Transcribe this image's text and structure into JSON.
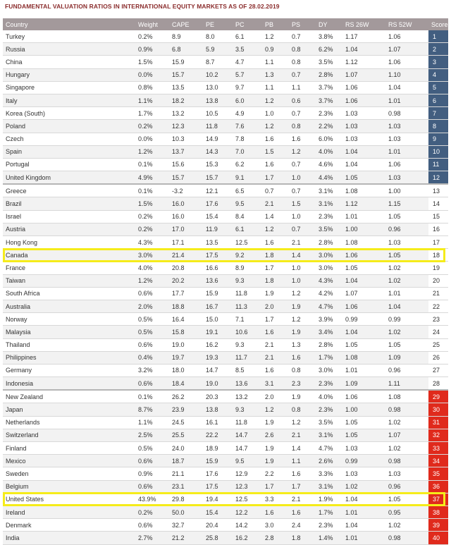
{
  "title": "FUNDAMENTAL VALUATION RATIOS IN INTERNATIONAL EQUITY MARKETS AS OF 28.02.2019",
  "columns": [
    "Country",
    "Weight",
    "CAPE",
    "PE",
    "PC",
    "PB",
    "PS",
    "DY",
    "RS 26W",
    "RS 52W",
    "Score"
  ],
  "highlighted_countries": [
    "Canada",
    "United States"
  ],
  "colors": {
    "header": "#a3999b",
    "top_score": "#425e80",
    "bottom_score": "#e02a1c",
    "highlight_border": "#f5ec1a",
    "title": "#8a2c2c"
  },
  "rows": [
    {
      "country": "Turkey",
      "weight": "0.2%",
      "cape": "8.9",
      "pe": "8.0",
      "pc": "6.1",
      "pb": "1.2",
      "ps": "0.7",
      "dy": "3.8%",
      "rs26": "1.17",
      "rs52": "1.06",
      "score": "1",
      "tier": "blue"
    },
    {
      "country": "Russia",
      "weight": "0.9%",
      "cape": "6.8",
      "pe": "5.9",
      "pc": "3.5",
      "pb": "0.9",
      "ps": "0.8",
      "dy": "6.2%",
      "rs26": "1.04",
      "rs52": "1.07",
      "score": "2",
      "tier": "blue"
    },
    {
      "country": "China",
      "weight": "1.5%",
      "cape": "15.9",
      "pe": "8.7",
      "pc": "4.7",
      "pb": "1.1",
      "ps": "0.8",
      "dy": "3.5%",
      "rs26": "1.12",
      "rs52": "1.06",
      "score": "3",
      "tier": "blue"
    },
    {
      "country": "Hungary",
      "weight": "0.0%",
      "cape": "15.7",
      "pe": "10.2",
      "pc": "5.7",
      "pb": "1.3",
      "ps": "0.7",
      "dy": "2.8%",
      "rs26": "1.07",
      "rs52": "1.10",
      "score": "4",
      "tier": "blue"
    },
    {
      "country": "Singapore",
      "weight": "0.8%",
      "cape": "13.5",
      "pe": "13.0",
      "pc": "9.7",
      "pb": "1.1",
      "ps": "1.1",
      "dy": "3.7%",
      "rs26": "1.06",
      "rs52": "1.04",
      "score": "5",
      "tier": "blue"
    },
    {
      "country": "Italy",
      "weight": "1.1%",
      "cape": "18.2",
      "pe": "13.8",
      "pc": "6.0",
      "pb": "1.2",
      "ps": "0.6",
      "dy": "3.7%",
      "rs26": "1.06",
      "rs52": "1.01",
      "score": "6",
      "tier": "blue"
    },
    {
      "country": "Korea (South)",
      "weight": "1.7%",
      "cape": "13.2",
      "pe": "10.5",
      "pc": "4.9",
      "pb": "1.0",
      "ps": "0.7",
      "dy": "2.3%",
      "rs26": "1.03",
      "rs52": "0.98",
      "score": "7",
      "tier": "blue"
    },
    {
      "country": "Poland",
      "weight": "0.2%",
      "cape": "12.3",
      "pe": "11.8",
      "pc": "7.6",
      "pb": "1.2",
      "ps": "0.8",
      "dy": "2.2%",
      "rs26": "1.03",
      "rs52": "1.03",
      "score": "8",
      "tier": "blue"
    },
    {
      "country": "Czech",
      "weight": "0.0%",
      "cape": "10.3",
      "pe": "14.9",
      "pc": "7.8",
      "pb": "1.6",
      "ps": "1.6",
      "dy": "6.0%",
      "rs26": "1.03",
      "rs52": "1.03",
      "score": "9",
      "tier": "blue"
    },
    {
      "country": "Spain",
      "weight": "1.2%",
      "cape": "13.7",
      "pe": "14.3",
      "pc": "7.0",
      "pb": "1.5",
      "ps": "1.2",
      "dy": "4.0%",
      "rs26": "1.04",
      "rs52": "1.01",
      "score": "10",
      "tier": "blue"
    },
    {
      "country": "Portugal",
      "weight": "0.1%",
      "cape": "15.6",
      "pe": "15.3",
      "pc": "6.2",
      "pb": "1.6",
      "ps": "0.7",
      "dy": "4.6%",
      "rs26": "1.04",
      "rs52": "1.06",
      "score": "11",
      "tier": "blue"
    },
    {
      "country": "United Kingdom",
      "weight": "4.9%",
      "cape": "15.7",
      "pe": "15.7",
      "pc": "9.1",
      "pb": "1.7",
      "ps": "1.0",
      "dy": "4.4%",
      "rs26": "1.05",
      "rs52": "1.03",
      "score": "12",
      "tier": "blue"
    },
    {
      "country": "Greece",
      "weight": "0.1%",
      "cape": "-3.2",
      "pe": "12.1",
      "pc": "6.5",
      "pb": "0.7",
      "ps": "0.7",
      "dy": "3.1%",
      "rs26": "1.08",
      "rs52": "1.00",
      "score": "13",
      "tier": "plain"
    },
    {
      "country": "Brazil",
      "weight": "1.5%",
      "cape": "16.0",
      "pe": "17.6",
      "pc": "9.5",
      "pb": "2.1",
      "ps": "1.5",
      "dy": "3.1%",
      "rs26": "1.12",
      "rs52": "1.15",
      "score": "14",
      "tier": "plain"
    },
    {
      "country": "Israel",
      "weight": "0.2%",
      "cape": "16.0",
      "pe": "15.4",
      "pc": "8.4",
      "pb": "1.4",
      "ps": "1.0",
      "dy": "2.3%",
      "rs26": "1.01",
      "rs52": "1.05",
      "score": "15",
      "tier": "plain"
    },
    {
      "country": "Austria",
      "weight": "0.2%",
      "cape": "17.0",
      "pe": "11.9",
      "pc": "6.1",
      "pb": "1.2",
      "ps": "0.7",
      "dy": "3.5%",
      "rs26": "1.00",
      "rs52": "0.96",
      "score": "16",
      "tier": "plain"
    },
    {
      "country": "Hong Kong",
      "weight": "4.3%",
      "cape": "17.1",
      "pe": "13.5",
      "pc": "12.5",
      "pb": "1.6",
      "ps": "2.1",
      "dy": "2.8%",
      "rs26": "1.08",
      "rs52": "1.03",
      "score": "17",
      "tier": "plain"
    },
    {
      "country": "Canada",
      "weight": "3.0%",
      "cape": "21.4",
      "pe": "17.5",
      "pc": "9.2",
      "pb": "1.8",
      "ps": "1.4",
      "dy": "3.0%",
      "rs26": "1.06",
      "rs52": "1.05",
      "score": "18",
      "tier": "plain"
    },
    {
      "country": "France",
      "weight": "4.0%",
      "cape": "20.8",
      "pe": "16.6",
      "pc": "8.9",
      "pb": "1.7",
      "ps": "1.0",
      "dy": "3.0%",
      "rs26": "1.05",
      "rs52": "1.02",
      "score": "19",
      "tier": "plain"
    },
    {
      "country": "Taiwan",
      "weight": "1.2%",
      "cape": "20.2",
      "pe": "13.6",
      "pc": "9.3",
      "pb": "1.8",
      "ps": "1.0",
      "dy": "4.3%",
      "rs26": "1.04",
      "rs52": "1.02",
      "score": "20",
      "tier": "plain"
    },
    {
      "country": "South Africa",
      "weight": "0.6%",
      "cape": "17.7",
      "pe": "15.9",
      "pc": "11.8",
      "pb": "1.9",
      "ps": "1.2",
      "dy": "4.2%",
      "rs26": "1.07",
      "rs52": "1.01",
      "score": "21",
      "tier": "plain"
    },
    {
      "country": "Australia",
      "weight": "2.0%",
      "cape": "18.8",
      "pe": "16.7",
      "pc": "11.3",
      "pb": "2.0",
      "ps": "1.9",
      "dy": "4.7%",
      "rs26": "1.06",
      "rs52": "1.04",
      "score": "22",
      "tier": "plain"
    },
    {
      "country": "Norway",
      "weight": "0.5%",
      "cape": "16.4",
      "pe": "15.0",
      "pc": "7.1",
      "pb": "1.7",
      "ps": "1.2",
      "dy": "3.9%",
      "rs26": "0.99",
      "rs52": "0.99",
      "score": "23",
      "tier": "plain"
    },
    {
      "country": "Malaysia",
      "weight": "0.5%",
      "cape": "15.8",
      "pe": "19.1",
      "pc": "10.6",
      "pb": "1.6",
      "ps": "1.9",
      "dy": "3.4%",
      "rs26": "1.04",
      "rs52": "1.02",
      "score": "24",
      "tier": "plain"
    },
    {
      "country": "Thailand",
      "weight": "0.6%",
      "cape": "19.0",
      "pe": "16.2",
      "pc": "9.3",
      "pb": "2.1",
      "ps": "1.3",
      "dy": "2.8%",
      "rs26": "1.05",
      "rs52": "1.05",
      "score": "25",
      "tier": "plain"
    },
    {
      "country": "Philippines",
      "weight": "0.4%",
      "cape": "19.7",
      "pe": "19.3",
      "pc": "11.7",
      "pb": "2.1",
      "ps": "1.6",
      "dy": "1.7%",
      "rs26": "1.08",
      "rs52": "1.09",
      "score": "26",
      "tier": "plain"
    },
    {
      "country": "Germany",
      "weight": "3.2%",
      "cape": "18.0",
      "pe": "14.7",
      "pc": "8.5",
      "pb": "1.6",
      "ps": "0.8",
      "dy": "3.0%",
      "rs26": "1.01",
      "rs52": "0.96",
      "score": "27",
      "tier": "plain"
    },
    {
      "country": "Indonesia",
      "weight": "0.6%",
      "cape": "18.4",
      "pe": "19.0",
      "pc": "13.6",
      "pb": "3.1",
      "ps": "2.3",
      "dy": "2.3%",
      "rs26": "1.09",
      "rs52": "1.11",
      "score": "28",
      "tier": "plain"
    },
    {
      "country": "New Zealand",
      "weight": "0.1%",
      "cape": "26.2",
      "pe": "20.3",
      "pc": "13.2",
      "pb": "2.0",
      "ps": "1.9",
      "dy": "4.0%",
      "rs26": "1.06",
      "rs52": "1.08",
      "score": "29",
      "tier": "red"
    },
    {
      "country": "Japan",
      "weight": "8.7%",
      "cape": "23.9",
      "pe": "13.8",
      "pc": "9.3",
      "pb": "1.2",
      "ps": "0.8",
      "dy": "2.3%",
      "rs26": "1.00",
      "rs52": "0.98",
      "score": "30",
      "tier": "red"
    },
    {
      "country": "Netherlands",
      "weight": "1.1%",
      "cape": "24.5",
      "pe": "16.1",
      "pc": "11.8",
      "pb": "1.9",
      "ps": "1.2",
      "dy": "3.5%",
      "rs26": "1.05",
      "rs52": "1.02",
      "score": "31",
      "tier": "red"
    },
    {
      "country": "Switzerland",
      "weight": "2.5%",
      "cape": "25.5",
      "pe": "22.2",
      "pc": "14.7",
      "pb": "2.6",
      "ps": "2.1",
      "dy": "3.1%",
      "rs26": "1.05",
      "rs52": "1.07",
      "score": "32",
      "tier": "red"
    },
    {
      "country": "Finland",
      "weight": "0.5%",
      "cape": "24.0",
      "pe": "18.9",
      "pc": "14.7",
      "pb": "1.9",
      "ps": "1.4",
      "dy": "4.7%",
      "rs26": "1.03",
      "rs52": "1.02",
      "score": "33",
      "tier": "red"
    },
    {
      "country": "Mexico",
      "weight": "0.6%",
      "cape": "18.7",
      "pe": "15.9",
      "pc": "9.5",
      "pb": "1.9",
      "ps": "1.1",
      "dy": "2.6%",
      "rs26": "0.99",
      "rs52": "0.98",
      "score": "34",
      "tier": "red"
    },
    {
      "country": "Sweden",
      "weight": "0.9%",
      "cape": "21.1",
      "pe": "17.6",
      "pc": "12.9",
      "pb": "2.2",
      "ps": "1.6",
      "dy": "3.3%",
      "rs26": "1.03",
      "rs52": "1.03",
      "score": "35",
      "tier": "red"
    },
    {
      "country": "Belgium",
      "weight": "0.6%",
      "cape": "23.1",
      "pe": "17.5",
      "pc": "12.3",
      "pb": "1.7",
      "ps": "1.7",
      "dy": "3.1%",
      "rs26": "1.02",
      "rs52": "0.96",
      "score": "36",
      "tier": "red"
    },
    {
      "country": "United States",
      "weight": "43.9%",
      "cape": "29.8",
      "pe": "19.4",
      "pc": "12.5",
      "pb": "3.3",
      "ps": "2.1",
      "dy": "1.9%",
      "rs26": "1.04",
      "rs52": "1.05",
      "score": "37",
      "tier": "red"
    },
    {
      "country": "Ireland",
      "weight": "0.2%",
      "cape": "50.0",
      "pe": "15.4",
      "pc": "12.2",
      "pb": "1.6",
      "ps": "1.6",
      "dy": "1.7%",
      "rs26": "1.01",
      "rs52": "0.95",
      "score": "38",
      "tier": "red"
    },
    {
      "country": "Denmark",
      "weight": "0.6%",
      "cape": "32.7",
      "pe": "20.4",
      "pc": "14.2",
      "pb": "3.0",
      "ps": "2.4",
      "dy": "2.3%",
      "rs26": "1.04",
      "rs52": "1.02",
      "score": "39",
      "tier": "red"
    },
    {
      "country": "India",
      "weight": "2.7%",
      "cape": "21.2",
      "pe": "25.8",
      "pc": "16.2",
      "pb": "2.8",
      "ps": "1.8",
      "dy": "1.4%",
      "rs26": "1.01",
      "rs52": "0.98",
      "score": "40",
      "tier": "red"
    }
  ]
}
